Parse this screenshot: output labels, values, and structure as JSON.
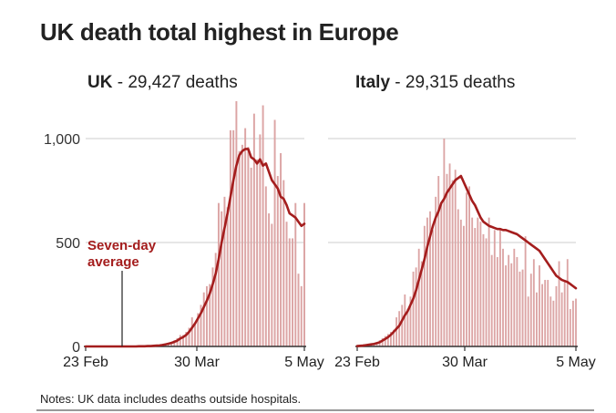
{
  "title": "UK death total highest in Europe",
  "notes": "Notes: UK data includes deaths outside hospitals.",
  "annotation": {
    "line1": "Seven-day",
    "line2": "average"
  },
  "colors": {
    "bar": "#dca5a5",
    "line": "#a41d1d",
    "annotation": "#a41d1d",
    "grid": "#cccccc",
    "axis": "#333333"
  },
  "chart_data": [
    {
      "type": "bar",
      "country": "UK",
      "subtitle": " - 29,427 deaths",
      "x_tick_labels": [
        "23 Feb",
        "30 Mar",
        "5 May"
      ],
      "y_ticks": [
        0,
        500,
        1000
      ],
      "y_tick_labels": [
        "0",
        "500",
        "1,000"
      ],
      "ylim": [
        0,
        1200
      ],
      "grid": true,
      "series": [
        {
          "kind": "bar",
          "values": [
            0,
            0,
            0,
            0,
            0,
            0,
            0,
            0,
            0,
            0,
            0,
            0,
            0,
            0,
            0,
            0,
            0,
            0,
            1,
            1,
            1,
            2,
            2,
            3,
            5,
            5,
            10,
            12,
            18,
            20,
            30,
            40,
            55,
            55,
            70,
            90,
            140,
            110,
            160,
            200,
            260,
            290,
            300,
            380,
            450,
            690,
            650,
            720,
            670,
            1040,
            1040,
            1180,
            940,
            970,
            1050,
            960,
            860,
            1120,
            900,
            1020,
            1160,
            770,
            640,
            590,
            1090,
            820,
            930,
            800,
            600,
            520,
            520,
            690,
            350,
            290,
            690
          ],
          "color": "#dca5a5"
        },
        {
          "kind": "line",
          "name": "Seven-day average",
          "values": [
            0,
            0,
            0,
            0,
            0,
            0,
            0,
            0,
            0,
            0,
            0,
            0,
            0,
            0,
            0,
            0,
            0,
            0,
            1,
            1,
            1,
            2,
            2,
            3,
            4,
            5,
            7,
            10,
            13,
            17,
            22,
            28,
            38,
            45,
            55,
            70,
            90,
            110,
            135,
            160,
            190,
            220,
            255,
            300,
            350,
            420,
            500,
            570,
            640,
            720,
            800,
            870,
            920,
            940,
            950,
            950,
            910,
            900,
            880,
            900,
            870,
            880,
            840,
            800,
            780,
            760,
            720,
            710,
            680,
            640,
            630,
            620,
            600,
            580,
            590
          ],
          "color": "#a41d1d"
        }
      ]
    },
    {
      "type": "bar",
      "country": "Italy",
      "subtitle": " - 29,315 deaths",
      "x_tick_labels": [
        "23 Feb",
        "30 Mar",
        "5 May"
      ],
      "y_ticks": [
        0,
        500,
        1000
      ],
      "ylim": [
        0,
        1200
      ],
      "grid": true,
      "series": [
        {
          "kind": "bar",
          "values": [
            2,
            4,
            5,
            8,
            10,
            12,
            16,
            20,
            30,
            40,
            50,
            60,
            70,
            80,
            140,
            170,
            200,
            250,
            180,
            240,
            360,
            380,
            470,
            410,
            580,
            620,
            650,
            560,
            720,
            820,
            690,
            1000,
            830,
            880,
            800,
            850,
            660,
            610,
            580,
            740,
            770,
            620,
            570,
            620,
            600,
            540,
            520,
            620,
            440,
            560,
            430,
            570,
            470,
            390,
            440,
            400,
            470,
            430,
            360,
            370,
            530,
            240,
            350,
            420,
            260,
            390,
            300,
            320,
            320,
            240,
            220,
            290,
            410,
            260,
            320,
            420,
            180,
            220,
            230
          ],
          "color": "#dca5a5"
        },
        {
          "kind": "line",
          "name": "Seven-day average",
          "values": [
            2,
            3,
            4,
            6,
            8,
            10,
            12,
            16,
            20,
            28,
            36,
            45,
            56,
            70,
            85,
            100,
            125,
            150,
            170,
            200,
            230,
            270,
            320,
            370,
            420,
            480,
            530,
            580,
            620,
            650,
            690,
            710,
            740,
            760,
            780,
            800,
            810,
            820,
            790,
            760,
            730,
            700,
            680,
            650,
            620,
            600,
            590,
            580,
            575,
            570,
            565,
            565,
            560,
            560,
            555,
            550,
            545,
            540,
            530,
            520,
            510,
            500,
            490,
            480,
            470,
            460,
            440,
            420,
            400,
            380,
            360,
            340,
            330,
            320,
            315,
            310,
            300,
            290,
            280
          ],
          "color": "#a41d1d"
        }
      ]
    }
  ]
}
